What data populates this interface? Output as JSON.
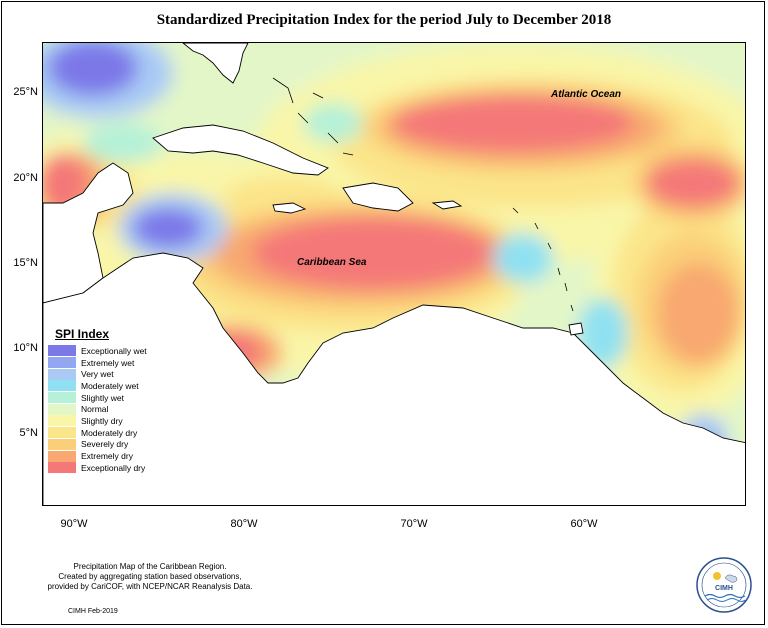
{
  "title": "Standardized Precipitation Index for the period July to December 2018",
  "ocean_labels": {
    "atlantic": "Atlantic Ocean",
    "caribbean": "Caribbean Sea"
  },
  "lat_ticks": [
    "25°N",
    "20°N",
    "15°N",
    "10°N",
    "5°N"
  ],
  "lon_ticks": [
    "90°W",
    "80°W",
    "70°W",
    "60°W"
  ],
  "legend": {
    "title": "SPI Index",
    "items": [
      {
        "label": "Exceptionally wet",
        "color": "#7b78e8"
      },
      {
        "label": "Extremely wet",
        "color": "#93a6f2"
      },
      {
        "label": "Very wet",
        "color": "#a9caf5"
      },
      {
        "label": "Moderately wet",
        "color": "#8fe1f2"
      },
      {
        "label": "Slightly wet",
        "color": "#b4f1d8"
      },
      {
        "label": "Normal",
        "color": "#e3f6c8"
      },
      {
        "label": "Slightly dry",
        "color": "#f9f6a9"
      },
      {
        "label": "Moderately dry",
        "color": "#fbe58a"
      },
      {
        "label": "Severely dry",
        "color": "#fbcf79"
      },
      {
        "label": "Extremely dry",
        "color": "#f8a870"
      },
      {
        "label": "Exceptionally dry",
        "color": "#f47878"
      }
    ]
  },
  "footnote": {
    "line1": "Precipitation Map of the Caribbean Region.",
    "line2": "Created by aggregating station based observations,",
    "line3": "provided by CariCOF, with NCEP/NCAR Reanalysis Data."
  },
  "credit": "CIMH Feb-2019",
  "logo_text": "CIMH"
}
